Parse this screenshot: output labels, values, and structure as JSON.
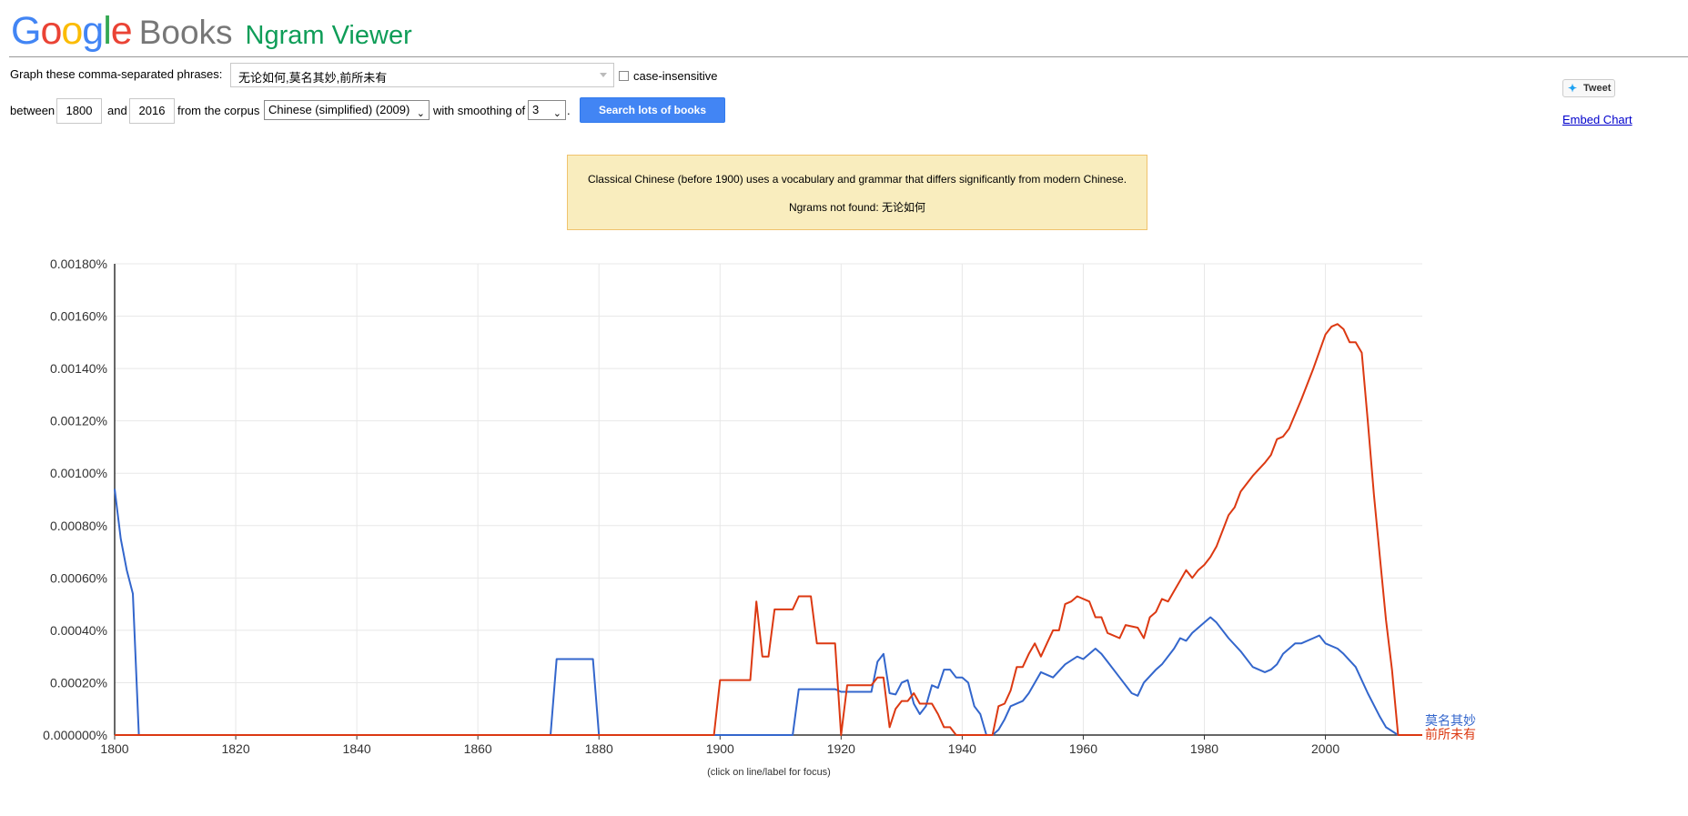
{
  "header": {
    "logo_google": "Google",
    "logo_books": "Books",
    "title": "Ngram Viewer"
  },
  "form": {
    "phrases_label": "Graph these comma-separated phrases:",
    "phrases_value": "无论如何,莫名其妙,前所未有",
    "case_insensitive_label": "case-insensitive",
    "case_insensitive_checked": false,
    "between_label": "between",
    "start_year": "1800",
    "and_label": "and",
    "end_year": "2016",
    "corpus_label": "from the corpus",
    "corpus_value": "Chinese (simplified) (2009)",
    "smoothing_label": "with smoothing of",
    "smoothing_value": "3",
    "period": ".",
    "search_button": "Search lots of books"
  },
  "side": {
    "tweet_label": "Tweet",
    "embed_label": "Embed Chart"
  },
  "notice": {
    "line1": "Classical Chinese (before 1900) uses a vocabulary and grammar that differs significantly from modern Chinese.",
    "line2": "Ngrams not found: 无论如何",
    "background": "#f9edbe",
    "border": "#f0c36d"
  },
  "colors": {
    "accent": "#4285f4",
    "title_green": "#0f9d58"
  },
  "chart_data": {
    "type": "line",
    "xlim": [
      1800,
      2016
    ],
    "ylim": [
      0,
      0.0018
    ],
    "xticks": [
      1800,
      1820,
      1840,
      1860,
      1880,
      1900,
      1920,
      1940,
      1960,
      1980,
      2000
    ],
    "yticks": [
      "0.000000%",
      "0.00020%",
      "0.00040%",
      "0.00060%",
      "0.00080%",
      "0.00100%",
      "0.00120%",
      "0.00140%",
      "0.00160%",
      "0.00180%"
    ],
    "ytick_values": [
      0,
      0.0002,
      0.0004,
      0.0006,
      0.0008,
      0.001,
      0.0012,
      0.0014,
      0.0016,
      0.0018
    ],
    "grid": true,
    "legend": "end-of-line labels",
    "note": "(click on line/label for focus)",
    "series": [
      {
        "name": "莫名其妙",
        "color": "#3366cc",
        "points": [
          [
            1800,
            0.00094
          ],
          [
            1801,
            0.00075
          ],
          [
            1802,
            0.00063
          ],
          [
            1803,
            0.00054
          ],
          [
            1804,
            0.0
          ],
          [
            1872,
            0.0
          ],
          [
            1873,
            0.00029
          ],
          [
            1879,
            0.00029
          ],
          [
            1880,
            0.0
          ],
          [
            1912,
            0.0
          ],
          [
            1913,
            0.000175
          ],
          [
            1919,
            0.000175
          ],
          [
            1920,
            0.000165
          ],
          [
            1925,
            0.000165
          ],
          [
            1926,
            0.00028
          ],
          [
            1927,
            0.00031
          ],
          [
            1928,
            0.00016
          ],
          [
            1929,
            0.000155
          ],
          [
            1930,
            0.0002
          ],
          [
            1931,
            0.00021
          ],
          [
            1932,
            0.00012
          ],
          [
            1933,
            8e-05
          ],
          [
            1934,
            0.00011
          ],
          [
            1935,
            0.00019
          ],
          [
            1936,
            0.00018
          ],
          [
            1937,
            0.00025
          ],
          [
            1938,
            0.00025
          ],
          [
            1939,
            0.00022
          ],
          [
            1940,
            0.00022
          ],
          [
            1941,
            0.0002
          ],
          [
            1942,
            0.00011
          ],
          [
            1943,
            8e-05
          ],
          [
            1944,
            0.0
          ],
          [
            1945,
            0.0
          ],
          [
            1946,
            2e-05
          ],
          [
            1947,
            6e-05
          ],
          [
            1948,
            0.00011
          ],
          [
            1950,
            0.00013
          ],
          [
            1951,
            0.00016
          ],
          [
            1953,
            0.00024
          ],
          [
            1955,
            0.00022
          ],
          [
            1957,
            0.00027
          ],
          [
            1959,
            0.0003
          ],
          [
            1960,
            0.00029
          ],
          [
            1962,
            0.00033
          ],
          [
            1963,
            0.00031
          ],
          [
            1964,
            0.00028
          ],
          [
            1966,
            0.00022
          ],
          [
            1968,
            0.00016
          ],
          [
            1969,
            0.00015
          ],
          [
            1970,
            0.0002
          ],
          [
            1972,
            0.00025
          ],
          [
            1973,
            0.00027
          ],
          [
            1975,
            0.00033
          ],
          [
            1976,
            0.00037
          ],
          [
            1977,
            0.00036
          ],
          [
            1978,
            0.00039
          ],
          [
            1980,
            0.00043
          ],
          [
            1981,
            0.00045
          ],
          [
            1982,
            0.00043
          ],
          [
            1984,
            0.00037
          ],
          [
            1986,
            0.00032
          ],
          [
            1988,
            0.00026
          ],
          [
            1990,
            0.00024
          ],
          [
            1991,
            0.00025
          ],
          [
            1992,
            0.00027
          ],
          [
            1993,
            0.00031
          ],
          [
            1995,
            0.00035
          ],
          [
            1996,
            0.00035
          ],
          [
            1998,
            0.00037
          ],
          [
            1999,
            0.00038
          ],
          [
            2000,
            0.00035
          ],
          [
            2002,
            0.00033
          ],
          [
            2003,
            0.00031
          ],
          [
            2005,
            0.00026
          ],
          [
            2007,
            0.00016
          ],
          [
            2009,
            7e-05
          ],
          [
            2010,
            3e-05
          ],
          [
            2012,
            0.0
          ],
          [
            2016,
            0.0
          ]
        ]
      },
      {
        "name": "前所未有",
        "color": "#dc3912",
        "points": [
          [
            1800,
            0.0
          ],
          [
            1899,
            0.0
          ],
          [
            1900,
            0.00021
          ],
          [
            1905,
            0.00021
          ],
          [
            1906,
            0.00051
          ],
          [
            1907,
            0.0003
          ],
          [
            1908,
            0.0003
          ],
          [
            1909,
            0.00048
          ],
          [
            1912,
            0.00048
          ],
          [
            1913,
            0.00053
          ],
          [
            1915,
            0.00053
          ],
          [
            1916,
            0.00035
          ],
          [
            1919,
            0.00035
          ],
          [
            1920,
            0.0
          ],
          [
            1921,
            0.00019
          ],
          [
            1925,
            0.00019
          ],
          [
            1926,
            0.00022
          ],
          [
            1927,
            0.00022
          ],
          [
            1928,
            3e-05
          ],
          [
            1929,
            0.0001
          ],
          [
            1930,
            0.00013
          ],
          [
            1931,
            0.00013
          ],
          [
            1932,
            0.00016
          ],
          [
            1933,
            0.00012
          ],
          [
            1935,
            0.00012
          ],
          [
            1936,
            8e-05
          ],
          [
            1937,
            3e-05
          ],
          [
            1938,
            3e-05
          ],
          [
            1939,
            0.0
          ],
          [
            1945,
            0.0
          ],
          [
            1946,
            0.00011
          ],
          [
            1947,
            0.00012
          ],
          [
            1948,
            0.00017
          ],
          [
            1949,
            0.00026
          ],
          [
            1950,
            0.00026
          ],
          [
            1951,
            0.00031
          ],
          [
            1952,
            0.00035
          ],
          [
            1953,
            0.0003
          ],
          [
            1954,
            0.00035
          ],
          [
            1955,
            0.0004
          ],
          [
            1956,
            0.0004
          ],
          [
            1957,
            0.0005
          ],
          [
            1958,
            0.00051
          ],
          [
            1959,
            0.00053
          ],
          [
            1961,
            0.00051
          ],
          [
            1962,
            0.00045
          ],
          [
            1963,
            0.00045
          ],
          [
            1964,
            0.00039
          ],
          [
            1966,
            0.00037
          ],
          [
            1967,
            0.00042
          ],
          [
            1969,
            0.00041
          ],
          [
            1970,
            0.00037
          ],
          [
            1971,
            0.00045
          ],
          [
            1972,
            0.00047
          ],
          [
            1973,
            0.00052
          ],
          [
            1974,
            0.00051
          ],
          [
            1975,
            0.00055
          ],
          [
            1976,
            0.00059
          ],
          [
            1977,
            0.00063
          ],
          [
            1978,
            0.0006
          ],
          [
            1979,
            0.00063
          ],
          [
            1980,
            0.00065
          ],
          [
            1981,
            0.00068
          ],
          [
            1982,
            0.00072
          ],
          [
            1983,
            0.00078
          ],
          [
            1984,
            0.00084
          ],
          [
            1985,
            0.00087
          ],
          [
            1986,
            0.00093
          ],
          [
            1988,
            0.00099
          ],
          [
            1990,
            0.00104
          ],
          [
            1991,
            0.00107
          ],
          [
            1992,
            0.00113
          ],
          [
            1993,
            0.00114
          ],
          [
            1994,
            0.00117
          ],
          [
            1996,
            0.00128
          ],
          [
            1998,
            0.0014
          ],
          [
            2000,
            0.00153
          ],
          [
            2001,
            0.00156
          ],
          [
            2002,
            0.00157
          ],
          [
            2003,
            0.00155
          ],
          [
            2004,
            0.0015
          ],
          [
            2005,
            0.0015
          ],
          [
            2006,
            0.00146
          ],
          [
            2007,
            0.0012
          ],
          [
            2008,
            0.00092
          ],
          [
            2009,
            0.00068
          ],
          [
            2010,
            0.00044
          ],
          [
            2011,
            0.00025
          ],
          [
            2012,
            0.0
          ],
          [
            2016,
            0.0
          ]
        ]
      }
    ]
  }
}
